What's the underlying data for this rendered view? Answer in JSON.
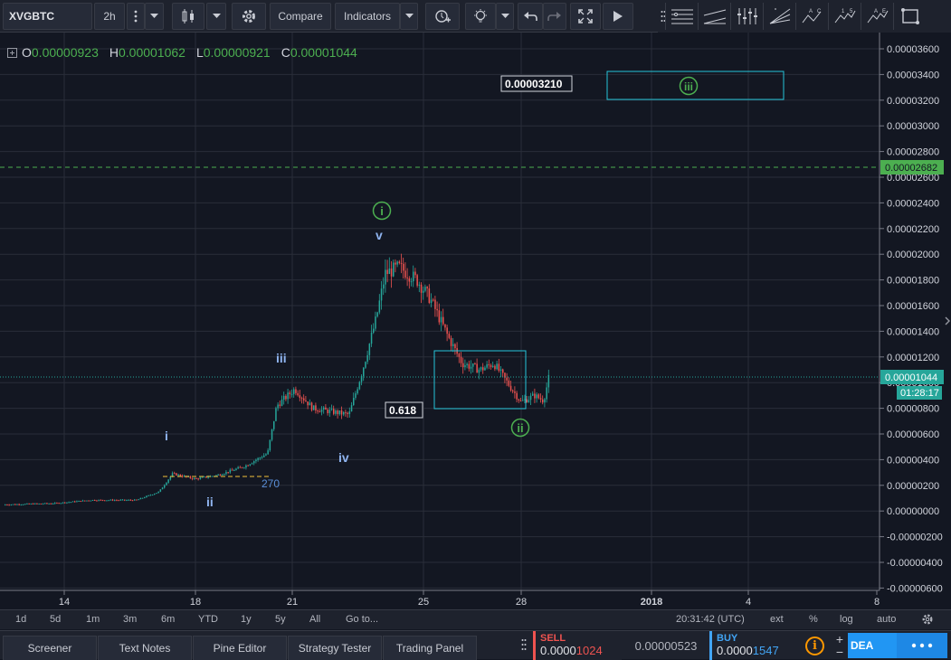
{
  "toolbar": {
    "symbol": "XVGBTC",
    "interval": "2h",
    "compare": "Compare",
    "indicators": "Indicators"
  },
  "ohlc": {
    "o_label": "O",
    "o_value": "0.00000923",
    "h_label": "H",
    "h_value": "0.00001062",
    "l_label": "L",
    "l_value": "0.00000921",
    "c_label": "C",
    "c_value": "0.00001044"
  },
  "price_axis": {
    "ticks": [
      "0.00003600",
      "0.00003400",
      "0.00003200",
      "0.00003000",
      "0.00002800",
      "0.00002600",
      "0.00002400",
      "0.00002200",
      "0.00002000",
      "0.00001800",
      "0.00001600",
      "0.00001400",
      "0.00001200",
      "0.00001000",
      "0.00000800",
      "0.00000600",
      "0.00000400",
      "0.00000200",
      "0.00000000",
      "-0.00000200",
      "-0.00000400",
      "-0.00000600"
    ],
    "current_price": "0.00001044",
    "countdown": "01:28:17",
    "green_line_price": "0.00002682"
  },
  "time_axis": {
    "ticks": [
      "14",
      "18",
      "21",
      "25",
      "28",
      "2018",
      "4",
      "8"
    ]
  },
  "annotations": {
    "target_label": "0.00003210",
    "fib_label": "0.618",
    "fib_ext": "270",
    "wave_i_minor": "i",
    "wave_ii_minor": "ii",
    "wave_iii_minor": "iii",
    "wave_iv_minor": "iv",
    "wave_v_minor": "v",
    "wave_i_major": "i",
    "wave_ii_major": "ii",
    "wave_iii_major": "iii"
  },
  "timebar": {
    "ranges": [
      "1d",
      "5d",
      "1m",
      "3m",
      "6m",
      "YTD",
      "1y",
      "5y",
      "All"
    ],
    "goto": "Go to...",
    "clock": "20:31:42 (UTC)",
    "ext": "ext",
    "pct": "%",
    "log": "log",
    "auto": "auto"
  },
  "bottom_tabs": [
    "Screener",
    "Text Notes",
    "Pine Editor",
    "Strategy Tester",
    "Trading Panel"
  ],
  "trade": {
    "sell_label": "SELL",
    "sell_price_main": "0.0000",
    "sell_price_tail": "1024",
    "spread": "0.00000523",
    "buy_label": "BUY",
    "buy_price_main": "0.0000",
    "buy_price_tail": "1547",
    "broker": "DEA"
  },
  "colors": {
    "up": "#26a69a",
    "down": "#ef5350",
    "wave_blue": "#8fb4f0",
    "wave_green": "#4caf50",
    "cyan": "#26c6da",
    "dashed_green": "#4caf50"
  }
}
